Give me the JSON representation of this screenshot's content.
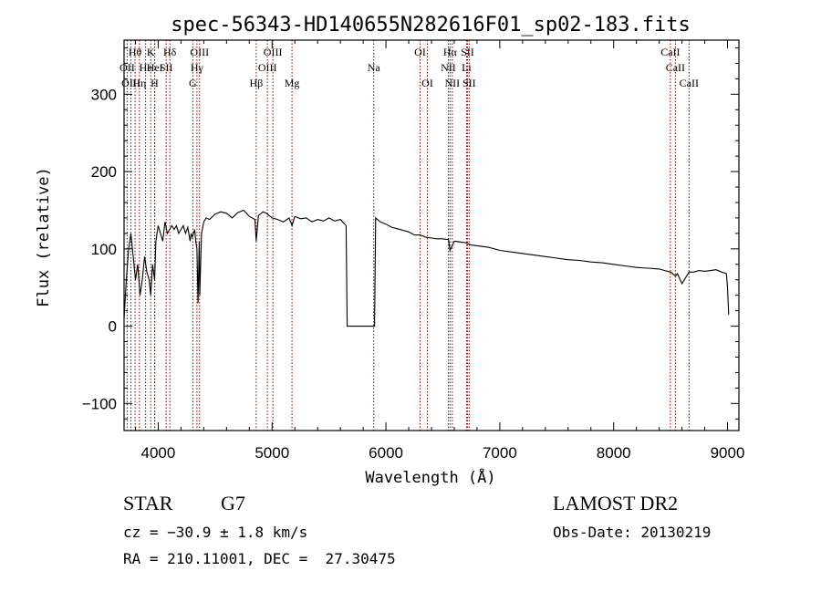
{
  "chart_data": {
    "type": "line",
    "title": "spec-56343-HD140655N282616F01_sp02-183.fits",
    "xlabel": "Wavelength (Å)",
    "ylabel": "Flux (relative)",
    "xlim": [
      3700,
      9100
    ],
    "ylim": [
      -135,
      370
    ],
    "xticks": [
      4000,
      5000,
      6000,
      7000,
      8000,
      9000
    ],
    "xtick_labels": [
      "4000",
      "5000",
      "6000",
      "7000",
      "8000",
      "9000"
    ],
    "yticks": [
      -100,
      0,
      100,
      200,
      300
    ],
    "ytick_labels": [
      "−100",
      "0",
      "100",
      "200",
      "300"
    ],
    "grid": false,
    "line_color": "#000000",
    "marker_color": "#8b0000",
    "series": [
      {
        "x": [
          3700,
          3720,
          3740,
          3760,
          3780,
          3800,
          3820,
          3840,
          3860,
          3880,
          3900,
          3920,
          3934,
          3950,
          3968,
          3980,
          4000,
          4020,
          4040,
          4060,
          4080,
          4100,
          4120,
          4140,
          4160,
          4180,
          4200,
          4220,
          4240,
          4260,
          4280,
          4290,
          4300,
          4320,
          4330,
          4340,
          4350,
          4360,
          4365,
          4380,
          4400,
          4420,
          4450,
          4500,
          4550,
          4600,
          4650,
          4700,
          4750,
          4800,
          4850,
          4861,
          4880,
          4920,
          4950,
          5000,
          5050,
          5100,
          5150,
          5175,
          5200,
          5250,
          5300,
          5350,
          5400,
          5450,
          5500,
          5550,
          5600,
          5650,
          5660,
          5900,
          5910,
          5950,
          6000,
          6050,
          6100,
          6150,
          6200,
          6250,
          6300,
          6350,
          6400,
          6450,
          6500,
          6550,
          6563,
          6600,
          6650,
          6700,
          6750,
          6800,
          6900,
          7000,
          7100,
          7200,
          7300,
          7400,
          7500,
          7600,
          7700,
          7800,
          7900,
          8000,
          8100,
          8200,
          8300,
          8400,
          8450,
          8500,
          8542,
          8560,
          8600,
          8662,
          8700,
          8750,
          8800,
          8850,
          8900,
          8950,
          8990,
          9000,
          9010
        ],
        "y": [
          10,
          60,
          100,
          120,
          90,
          60,
          80,
          40,
          60,
          90,
          70,
          60,
          40,
          80,
          60,
          110,
          130,
          120,
          110,
          135,
          120,
          125,
          130,
          125,
          130,
          120,
          125,
          130,
          120,
          128,
          110,
          120,
          115,
          125,
          110,
          100,
          30,
          110,
          40,
          120,
          135,
          140,
          138,
          145,
          148,
          146,
          140,
          147,
          150,
          142,
          138,
          110,
          143,
          148,
          146,
          140,
          138,
          135,
          140,
          130,
          142,
          139,
          140,
          135,
          138,
          136,
          140,
          136,
          138,
          130,
          0,
          0,
          140,
          135,
          132,
          128,
          126,
          124,
          122,
          118,
          118,
          115,
          114,
          113,
          113,
          112,
          98,
          110,
          109,
          108,
          105,
          104,
          102,
          98,
          96,
          94,
          92,
          90,
          88,
          86,
          85,
          83,
          82,
          80,
          78,
          76,
          75,
          74,
          72,
          70,
          65,
          68,
          55,
          70,
          70,
          72,
          71,
          72,
          73,
          70,
          68,
          50,
          15
        ]
      }
    ],
    "spectral_lines": [
      {
        "name": "Hθ",
        "wavelength": 3797,
        "row": 0
      },
      {
        "name": "K",
        "wavelength": 3934,
        "row": 0
      },
      {
        "name": "Hδ",
        "wavelength": 4102,
        "row": 0
      },
      {
        "name": "OIII",
        "wavelength": 4363,
        "row": 0
      },
      {
        "name": "OIII",
        "wavelength": 5007,
        "row": 0
      },
      {
        "name": "OI",
        "wavelength": 6300,
        "row": 0
      },
      {
        "name": "Hα",
        "wavelength": 6563,
        "row": 0
      },
      {
        "name": "SII",
        "wavelength": 6716,
        "row": 0
      },
      {
        "name": "CaII",
        "wavelength": 8498,
        "row": 0
      },
      {
        "name": "OII",
        "wavelength": 3727,
        "row": 1
      },
      {
        "name": "He",
        "wavelength": 3889,
        "row": 1
      },
      {
        "name": "HeI",
        "wavelength": 3970,
        "row": 1
      },
      {
        "name": "SII",
        "wavelength": 4070,
        "row": 1
      },
      {
        "name": "Hγ",
        "wavelength": 4340,
        "row": 1
      },
      {
        "name": "OIII",
        "wavelength": 4959,
        "row": 1
      },
      {
        "name": "Na",
        "wavelength": 5893,
        "row": 1
      },
      {
        "name": "NII",
        "wavelength": 6548,
        "row": 1
      },
      {
        "name": "Li",
        "wavelength": 6708,
        "row": 1
      },
      {
        "name": "CaII",
        "wavelength": 8542,
        "row": 1
      },
      {
        "name": "OIII",
        "wavelength": 3760,
        "row": 2
      },
      {
        "name": "Hη",
        "wavelength": 3835,
        "row": 2
      },
      {
        "name": "H",
        "wavelength": 3968,
        "row": 2
      },
      {
        "name": "G",
        "wavelength": 4304,
        "row": 2
      },
      {
        "name": "Hβ",
        "wavelength": 4861,
        "row": 2
      },
      {
        "name": "Mg",
        "wavelength": 5175,
        "row": 2
      },
      {
        "name": "OI",
        "wavelength": 6364,
        "row": 2
      },
      {
        "name": "NII",
        "wavelength": 6583,
        "row": 2
      },
      {
        "name": "SII",
        "wavelength": 6731,
        "row": 2
      },
      {
        "name": "CaII",
        "wavelength": 8662,
        "row": 2
      }
    ]
  },
  "info": {
    "class_label": "STAR",
    "subclass_label": "G7",
    "survey": "LAMOST DR2",
    "velocity": "cz = −30.9 ± 1.8 km/s",
    "obs_date": "Obs-Date: 20130219",
    "coords": "RA = 210.11001, DEC =  27.30475"
  }
}
